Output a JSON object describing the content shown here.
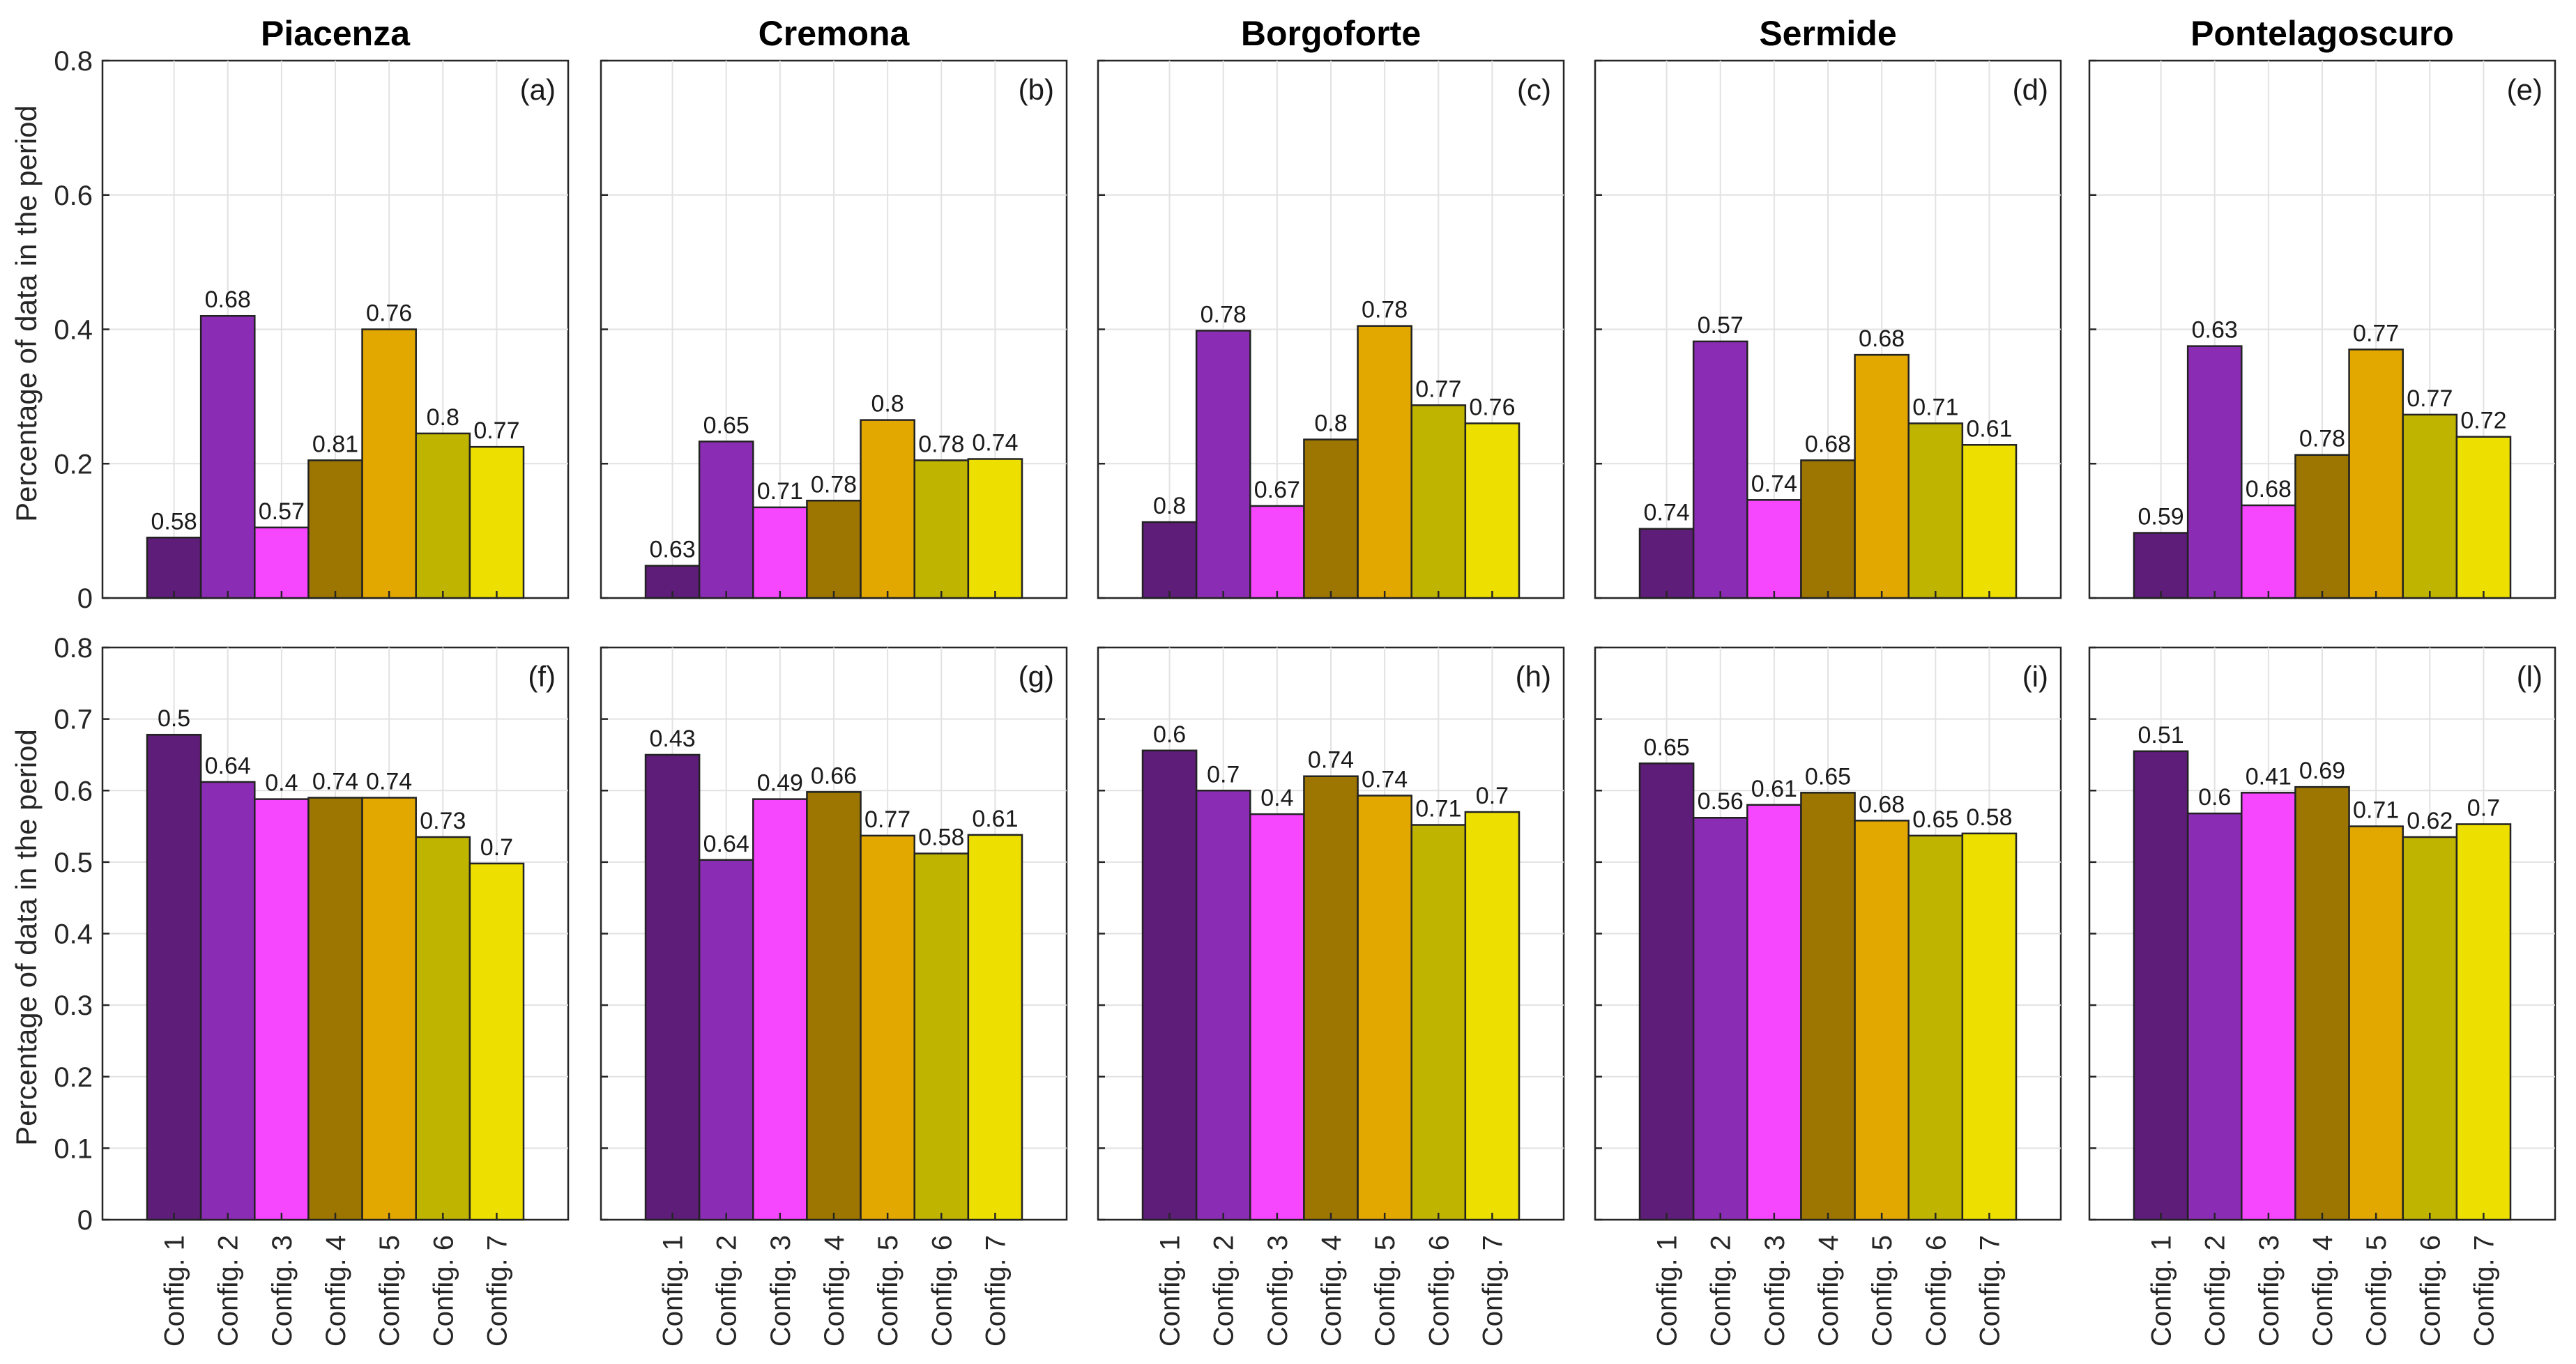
{
  "chart_data": {
    "type": "bar",
    "categories": [
      "Config. 1",
      "Config. 2",
      "Config. 3",
      "Config. 4",
      "Config. 5",
      "Config. 6",
      "Config. 7"
    ],
    "colors": [
      "#5d1d78",
      "#8b2db4",
      "#f647ff",
      "#9c7600",
      "#e2a800",
      "#bfb400",
      "#ede000"
    ],
    "ylabel": "Percentage of data in the period",
    "rows": [
      {
        "ylim": [
          0,
          0.8
        ],
        "yticks": [
          "0",
          "0.2",
          "0.4",
          "0.6",
          "0.8"
        ],
        "ytick_values": [
          0,
          0.2,
          0.4,
          0.6,
          0.8
        ]
      },
      {
        "ylim": [
          0,
          0.8
        ],
        "yticks": [
          "0",
          "0.1",
          "0.2",
          "0.3",
          "0.4",
          "0.5",
          "0.6",
          "0.7",
          "0.8"
        ],
        "ytick_values": [
          0,
          0.1,
          0.2,
          0.3,
          0.4,
          0.5,
          0.6,
          0.7,
          0.8
        ]
      }
    ],
    "panels": [
      {
        "title": "Piacenza",
        "letter": "(a)",
        "row": 0,
        "col": 0,
        "values": [
          0.09,
          0.42,
          0.105,
          0.205,
          0.4,
          0.245,
          0.225
        ],
        "labels": [
          "0.58",
          "0.68",
          "0.57",
          "0.81",
          "0.76",
          "0.8",
          "0.77"
        ]
      },
      {
        "title": "Cremona",
        "letter": "(b)",
        "row": 0,
        "col": 1,
        "values": [
          0.048,
          0.233,
          0.135,
          0.145,
          0.265,
          0.205,
          0.207
        ],
        "labels": [
          "0.63",
          "0.65",
          "0.71",
          "0.78",
          "0.8",
          "0.78",
          "0.74"
        ]
      },
      {
        "title": "Borgoforte",
        "letter": "(c)",
        "row": 0,
        "col": 2,
        "values": [
          0.113,
          0.398,
          0.137,
          0.236,
          0.405,
          0.287,
          0.26
        ],
        "labels": [
          "0.8",
          "0.78",
          "0.67",
          "0.8",
          "0.78",
          "0.77",
          "0.76"
        ]
      },
      {
        "title": "Sermide",
        "letter": "(d)",
        "row": 0,
        "col": 3,
        "values": [
          0.103,
          0.382,
          0.146,
          0.205,
          0.362,
          0.26,
          0.228
        ],
        "labels": [
          "0.74",
          "0.57",
          "0.74",
          "0.68",
          "0.68",
          "0.71",
          "0.61"
        ]
      },
      {
        "title": "Pontelagoscuro",
        "letter": "(e)",
        "row": 0,
        "col": 4,
        "values": [
          0.097,
          0.375,
          0.138,
          0.213,
          0.37,
          0.273,
          0.24
        ],
        "labels": [
          "0.59",
          "0.63",
          "0.68",
          "0.78",
          "0.77",
          "0.77",
          "0.72"
        ]
      },
      {
        "title": "",
        "letter": "(f)",
        "row": 1,
        "col": 0,
        "values": [
          0.678,
          0.612,
          0.588,
          0.59,
          0.59,
          0.535,
          0.498
        ],
        "labels": [
          "0.5",
          "0.64",
          "0.4",
          "0.74",
          "0.74",
          "0.73",
          "0.7"
        ]
      },
      {
        "title": "",
        "letter": "(g)",
        "row": 1,
        "col": 1,
        "values": [
          0.65,
          0.503,
          0.588,
          0.598,
          0.537,
          0.512,
          0.538
        ],
        "labels": [
          "0.43",
          "0.64",
          "0.49",
          "0.66",
          "0.77",
          "0.58",
          "0.61"
        ]
      },
      {
        "title": "",
        "letter": "(h)",
        "row": 1,
        "col": 2,
        "values": [
          0.656,
          0.6,
          0.567,
          0.62,
          0.593,
          0.552,
          0.57
        ],
        "labels": [
          "0.6",
          "0.7",
          "0.4",
          "0.74",
          "0.74",
          "0.71",
          "0.7"
        ]
      },
      {
        "title": "",
        "letter": "(i)",
        "row": 1,
        "col": 3,
        "values": [
          0.638,
          0.562,
          0.58,
          0.597,
          0.558,
          0.537,
          0.54
        ],
        "labels": [
          "0.65",
          "0.56",
          "0.61",
          "0.65",
          "0.68",
          "0.65",
          "0.58"
        ]
      },
      {
        "title": "",
        "letter": "(l)",
        "row": 1,
        "col": 4,
        "values": [
          0.655,
          0.568,
          0.597,
          0.605,
          0.55,
          0.535,
          0.553
        ],
        "labels": [
          "0.51",
          "0.6",
          "0.41",
          "0.69",
          "0.71",
          "0.62",
          "0.7"
        ]
      }
    ]
  }
}
